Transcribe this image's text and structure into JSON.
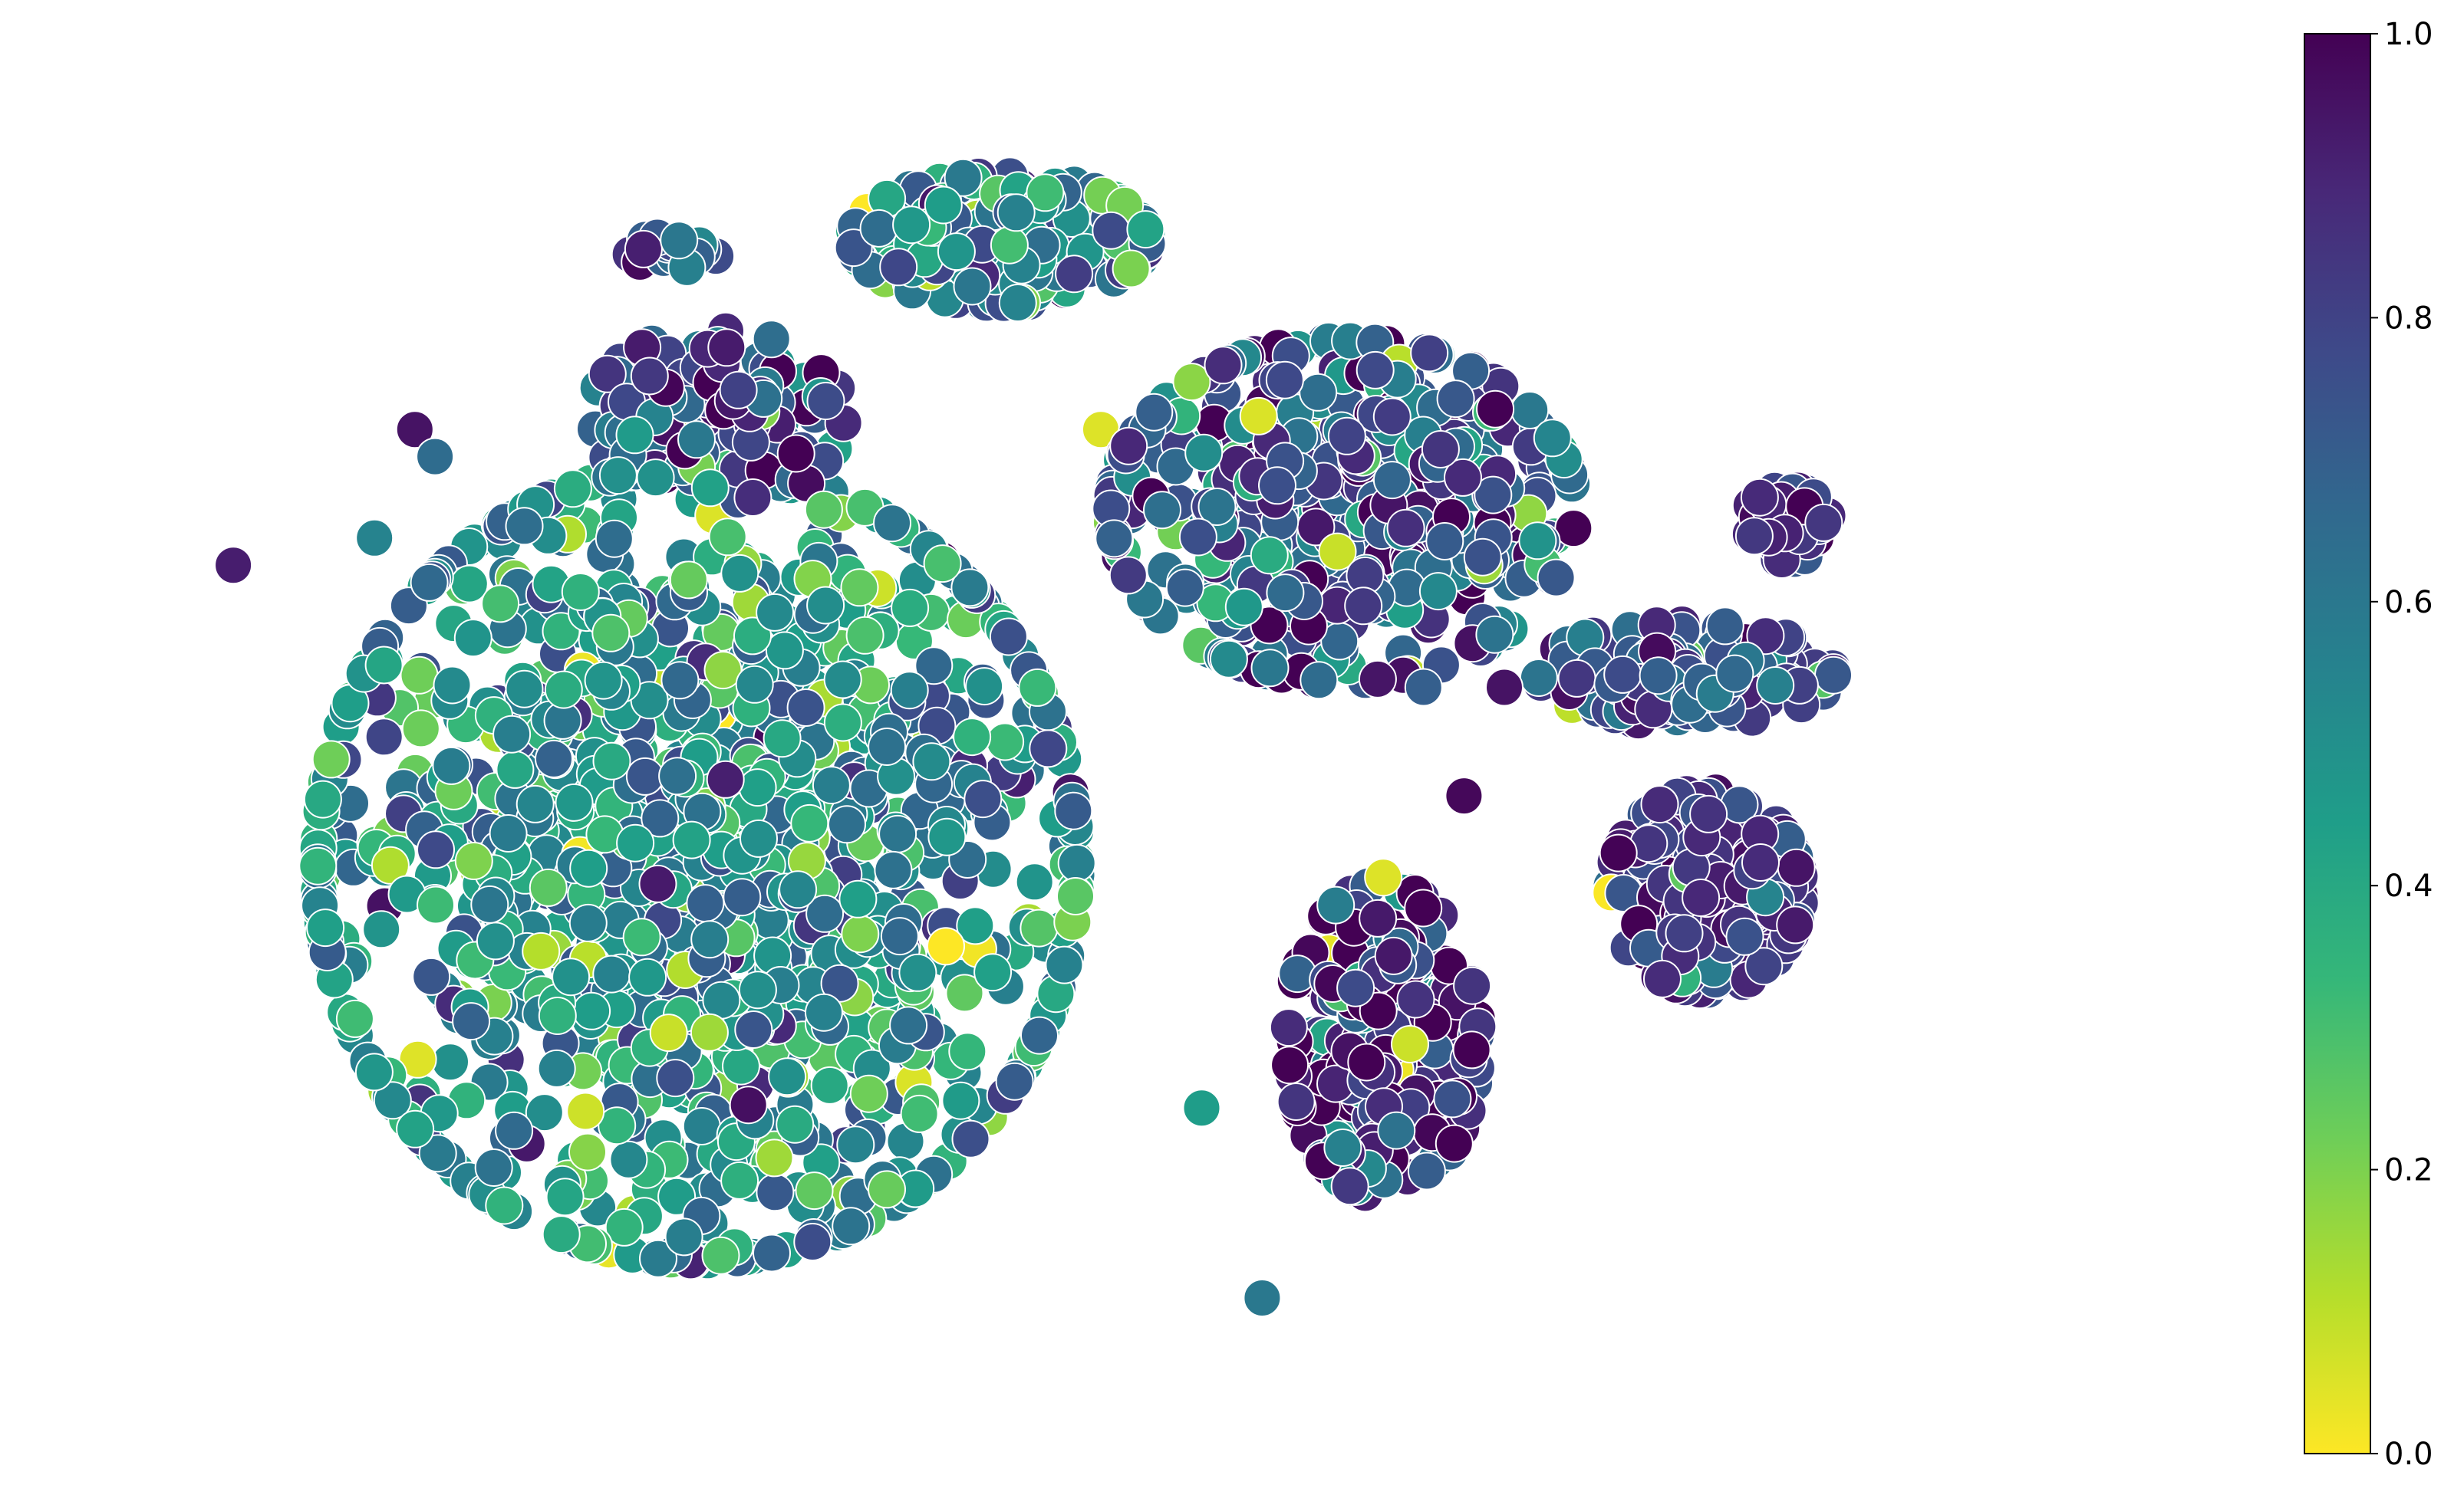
{
  "chart_data": {
    "type": "scatter",
    "title": "",
    "xlabel": "",
    "ylabel": "",
    "axes_visible": false,
    "colormap": "viridis_reversed",
    "marker": "circle",
    "marker_edge_color": "#ffffff",
    "colorbar": {
      "range": [
        0.0,
        1.0
      ],
      "ticks": [
        "0.0",
        "0.2",
        "0.4",
        "0.6",
        "0.8",
        "1.0"
      ],
      "tick_values": [
        0.0,
        0.2,
        0.4,
        0.6,
        0.8,
        1.0
      ],
      "placement": "right",
      "color_stops": [
        "#fde725",
        "#b5de2b",
        "#6ece58",
        "#35b779",
        "#1f9e89",
        "#26828e",
        "#31688e",
        "#3e4989",
        "#482878",
        "#440154"
      ]
    },
    "clusters": [
      {
        "name": "",
        "center": [
          0.3,
          0.42
        ],
        "spread": [
          0.18,
          0.28
        ],
        "value_mean": 0.5,
        "value_sd": 0.18,
        "count": 1400
      },
      {
        "name": "",
        "center": [
          0.62,
          0.68
        ],
        "spread": [
          0.11,
          0.12
        ],
        "value_mean": 0.72,
        "value_sd": 0.18,
        "count": 520
      },
      {
        "name": "",
        "center": [
          0.45,
          0.88
        ],
        "spread": [
          0.07,
          0.045
        ],
        "value_mean": 0.55,
        "value_sd": 0.2,
        "count": 220
      },
      {
        "name": "",
        "center": [
          0.64,
          0.29
        ],
        "spread": [
          0.045,
          0.11
        ],
        "value_mean": 0.88,
        "value_sd": 0.2,
        "count": 320
      },
      {
        "name": "",
        "center": [
          0.8,
          0.4
        ],
        "spread": [
          0.045,
          0.07
        ],
        "value_mean": 0.86,
        "value_sd": 0.08,
        "count": 260
      },
      {
        "name": "",
        "center": [
          0.79,
          0.56
        ],
        "spread": [
          0.07,
          0.035
        ],
        "value_mean": 0.78,
        "value_sd": 0.1,
        "count": 160
      },
      {
        "name": "",
        "center": [
          0.84,
          0.67
        ],
        "spread": [
          0.02,
          0.025
        ],
        "value_mean": 0.85,
        "value_sd": 0.08,
        "count": 40
      },
      {
        "name": "",
        "center": [
          0.31,
          0.75
        ],
        "spread": [
          0.06,
          0.06
        ],
        "value_mean": 0.78,
        "value_sd": 0.15,
        "count": 140
      },
      {
        "name": "",
        "center": [
          0.29,
          0.87
        ],
        "spread": [
          0.025,
          0.012
        ],
        "value_mean": 0.72,
        "value_sd": 0.15,
        "count": 20
      }
    ],
    "outliers": [
      {
        "x": 0.07,
        "y": 0.64,
        "value": 0.92
      },
      {
        "x": 0.16,
        "y": 0.74,
        "value": 0.95
      },
      {
        "x": 0.17,
        "y": 0.72,
        "value": 0.65
      },
      {
        "x": 0.14,
        "y": 0.66,
        "value": 0.55
      },
      {
        "x": 0.5,
        "y": 0.74,
        "value": 0.05
      },
      {
        "x": 0.54,
        "y": 0.75,
        "value": 0.35
      },
      {
        "x": 0.69,
        "y": 0.64,
        "value": 0.15
      },
      {
        "x": 0.66,
        "y": 0.55,
        "value": 0.7
      },
      {
        "x": 0.68,
        "y": 0.47,
        "value": 0.98
      },
      {
        "x": 0.64,
        "y": 0.41,
        "value": 0.05
      },
      {
        "x": 0.58,
        "y": 0.1,
        "value": 0.6
      },
      {
        "x": 0.55,
        "y": 0.24,
        "value": 0.45
      },
      {
        "x": 0.7,
        "y": 0.55,
        "value": 0.95
      },
      {
        "x": 0.81,
        "y": 0.44,
        "value": 0.9
      }
    ]
  }
}
